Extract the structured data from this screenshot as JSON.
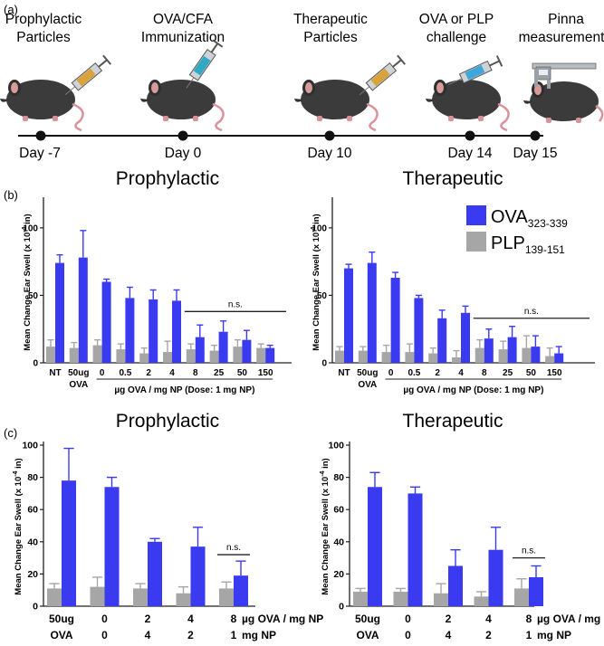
{
  "panel_labels": {
    "a": "(a)",
    "b": "(b)",
    "c": "(c)"
  },
  "timeline": {
    "steps": [
      {
        "line1": "Prophylactic",
        "line2": "Particles",
        "day": "Day -7",
        "icon": "mouse-syringe-orange"
      },
      {
        "line1": "OVA/CFA",
        "line2": "Immunization",
        "day": "Day 0",
        "icon": "mouse-syringe-teal"
      },
      {
        "line1": "Therapeutic",
        "line2": "Particles",
        "day": "Day 10",
        "icon": "mouse-syringe-orange"
      },
      {
        "line1": "OVA or PLP",
        "line2": "challenge",
        "day": "Day 14",
        "icon": "mouse-syringe-blue"
      },
      {
        "line1": "Pinna",
        "line2": "measurement",
        "day": "Day 15",
        "icon": "mouse-caliper"
      }
    ]
  },
  "colors": {
    "ova": "#3a3af0",
    "plp": "#a6a6a6",
    "axis": "#222222"
  },
  "legend": {
    "ova": {
      "base": "OVA",
      "sub": "323-339"
    },
    "plp": {
      "base": "PLP",
      "sub": "139-151"
    }
  },
  "ylabel": {
    "base": "Mean Change Ear Swell (x 10",
    "exp": "-4",
    "tail": " in)"
  },
  "chart_data": [
    {
      "type": "bar",
      "panel": "b",
      "title": "Prophylactic",
      "ylim": [
        0,
        120
      ],
      "yticks": [
        "0",
        "50",
        "100"
      ],
      "categories": [
        "NT",
        "50ug OVA",
        "0",
        "0.5",
        "2",
        "4",
        "8",
        "25",
        "50",
        "150"
      ],
      "xtick_labels": [
        [
          "NT"
        ],
        [
          "50ug",
          "OVA"
        ],
        [
          "0"
        ],
        [
          "0.5"
        ],
        [
          "2"
        ],
        [
          "4"
        ],
        [
          "8"
        ],
        [
          "25"
        ],
        [
          "50"
        ],
        [
          "150"
        ]
      ],
      "xlabel": "µg OVA / mg NP (Dose: 1 mg NP)",
      "significance": {
        "label": "n.s.",
        "from_index": 6,
        "to_index": 9,
        "y": 38
      },
      "series": [
        {
          "name": "PLP139-151",
          "color_key": "plp",
          "values": [
            12,
            11,
            13,
            10,
            7,
            8,
            10,
            9,
            12,
            11
          ],
          "errors": [
            5,
            4,
            4,
            4,
            4,
            8,
            4,
            4,
            5,
            3
          ]
        },
        {
          "name": "OVA323-339",
          "color_key": "ova",
          "values": [
            74,
            78,
            60,
            48,
            47,
            46,
            19,
            23,
            17,
            11
          ],
          "errors": [
            6,
            20,
            2,
            8,
            7,
            8,
            9,
            8,
            7,
            2
          ]
        }
      ]
    },
    {
      "type": "bar",
      "panel": "b",
      "title": "Therapeutic",
      "ylim": [
        0,
        120
      ],
      "yticks": [
        "0",
        "50",
        "100"
      ],
      "categories": [
        "NT",
        "50ug OVA",
        "0",
        "0.5",
        "2",
        "4",
        "8",
        "25",
        "50",
        "150"
      ],
      "xtick_labels": [
        [
          "NT"
        ],
        [
          "50ug",
          "OVA"
        ],
        [
          "0"
        ],
        [
          "0.5"
        ],
        [
          "2"
        ],
        [
          "4"
        ],
        [
          "8"
        ],
        [
          "25"
        ],
        [
          "50"
        ],
        [
          "150"
        ]
      ],
      "xlabel": "µg OVA / mg NP (Dose: 1 mg NP)",
      "significance": {
        "label": "n.s.",
        "from_index": 6,
        "to_index": 9,
        "y": 33
      },
      "series": [
        {
          "name": "PLP139-151",
          "color_key": "plp",
          "values": [
            9,
            9,
            8,
            8,
            7,
            4,
            11,
            10,
            11,
            5
          ],
          "errors": [
            3,
            3,
            5,
            6,
            4,
            5,
            6,
            6,
            9,
            6
          ]
        },
        {
          "name": "OVA323-339",
          "color_key": "ova",
          "values": [
            70,
            74,
            63,
            48,
            33,
            37,
            18,
            19,
            12,
            7
          ],
          "errors": [
            3,
            8,
            4,
            2,
            6,
            5,
            7,
            8,
            8,
            5
          ]
        }
      ]
    },
    {
      "type": "bar",
      "panel": "c",
      "title": "Prophylactic",
      "ylim": [
        0,
        100
      ],
      "yticks": [
        "0",
        "20",
        "40",
        "60",
        "80",
        "100"
      ],
      "categories": [
        "50ug OVA",
        "0",
        "2",
        "4",
        "8"
      ],
      "xtick_labels": [
        [
          "50ug",
          "OVA"
        ],
        [
          "0",
          "0"
        ],
        [
          "2",
          "4"
        ],
        [
          "4",
          "2"
        ],
        [
          "8",
          "1"
        ]
      ],
      "row_labels": [
        "µg OVA / mg NP",
        "mg NP"
      ],
      "significance": {
        "label": "n.s.",
        "from_index": 4,
        "to_index": 4,
        "y": 32
      },
      "series": [
        {
          "name": "PLP139-151",
          "color_key": "plp",
          "values": [
            11,
            12,
            11,
            8,
            11
          ],
          "errors": [
            3,
            6,
            3,
            4,
            4
          ]
        },
        {
          "name": "OVA323-339",
          "color_key": "ova",
          "values": [
            78,
            74,
            40,
            37,
            19
          ],
          "errors": [
            20,
            6,
            2,
            12,
            9
          ]
        }
      ]
    },
    {
      "type": "bar",
      "panel": "c",
      "title": "Therapeutic",
      "ylim": [
        0,
        100
      ],
      "yticks": [
        "0",
        "20",
        "40",
        "60",
        "80",
        "100"
      ],
      "categories": [
        "50ug OVA",
        "0",
        "2",
        "4",
        "8"
      ],
      "xtick_labels": [
        [
          "50ug",
          "OVA"
        ],
        [
          "0",
          "0"
        ],
        [
          "2",
          "4"
        ],
        [
          "4",
          "2"
        ],
        [
          "8",
          "1"
        ]
      ],
      "row_labels": [
        "µg OVA / mg NP",
        "mg NP"
      ],
      "significance": {
        "label": "n.s.",
        "from_index": 4,
        "to_index": 4,
        "y": 30
      },
      "series": [
        {
          "name": "PLP139-151",
          "color_key": "plp",
          "values": [
            9,
            9,
            8,
            6,
            11
          ],
          "errors": [
            2,
            2,
            6,
            3,
            6
          ]
        },
        {
          "name": "OVA323-339",
          "color_key": "ova",
          "values": [
            74,
            70,
            25,
            35,
            18
          ],
          "errors": [
            9,
            4,
            10,
            14,
            7
          ]
        }
      ]
    }
  ]
}
